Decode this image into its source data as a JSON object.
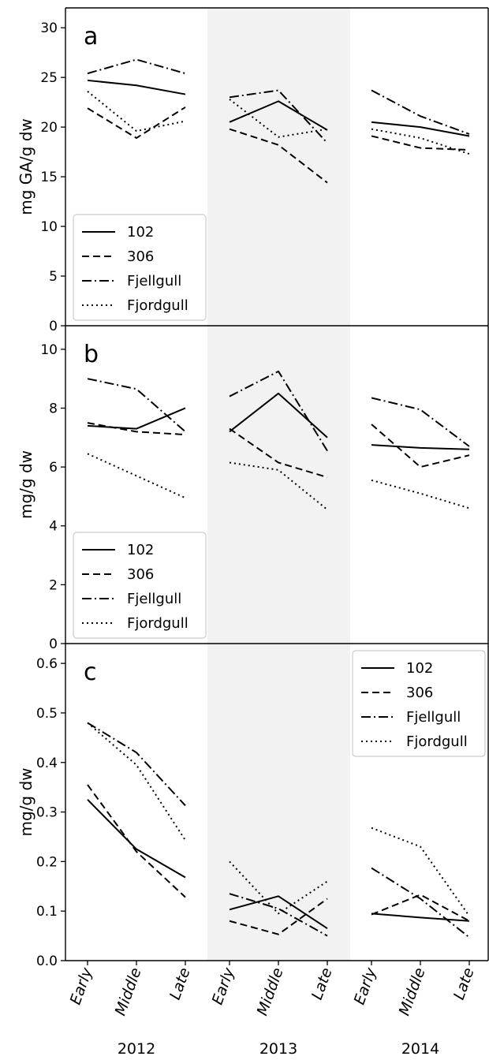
{
  "chart_data": {
    "type": "line",
    "categories": [
      "Early",
      "Middle",
      "Late"
    ],
    "years": [
      "2012",
      "2013",
      "2014"
    ],
    "series_names": [
      "102",
      "306",
      "Fjellgull",
      "Fjordgull"
    ],
    "panels": [
      {
        "letter": "a",
        "ylabel": "mg GA/g dw",
        "ylim": [
          0,
          32
        ],
        "yticks": [
          0,
          5,
          10,
          15,
          20,
          25,
          30
        ],
        "legend_position": "lower-left",
        "series": [
          {
            "name": "102",
            "values": {
              "2012": [
                24.7,
                24.2,
                23.3
              ],
              "2013": [
                20.5,
                22.6,
                19.7
              ],
              "2014": [
                20.5,
                20.0,
                19.1
              ]
            }
          },
          {
            "name": "306",
            "values": {
              "2012": [
                21.9,
                18.9,
                22.0
              ],
              "2013": [
                19.8,
                18.2,
                14.4
              ],
              "2014": [
                19.1,
                17.9,
                17.7
              ]
            }
          },
          {
            "name": "Fjellgull",
            "values": {
              "2012": [
                25.4,
                26.8,
                25.4
              ],
              "2013": [
                23.0,
                23.7,
                18.4
              ],
              "2014": [
                23.7,
                21.1,
                19.3
              ]
            }
          },
          {
            "name": "Fjordgull",
            "values": {
              "2012": [
                23.6,
                19.6,
                20.6
              ],
              "2013": [
                22.8,
                19.0,
                19.8
              ],
              "2014": [
                19.8,
                18.9,
                17.3
              ]
            }
          }
        ]
      },
      {
        "letter": "b",
        "ylabel": "mg/g dw",
        "ylim": [
          0,
          10.8
        ],
        "yticks": [
          0,
          2,
          4,
          6,
          8,
          10
        ],
        "legend_position": "lower-left",
        "series": [
          {
            "name": "102",
            "values": {
              "2012": [
                7.4,
                7.3,
                8.0
              ],
              "2013": [
                7.2,
                8.5,
                7.0
              ],
              "2014": [
                6.75,
                6.65,
                6.6
              ]
            }
          },
          {
            "name": "306",
            "values": {
              "2012": [
                7.5,
                7.2,
                7.1
              ],
              "2013": [
                7.3,
                6.15,
                5.65
              ],
              "2014": [
                7.45,
                6.0,
                6.4
              ]
            }
          },
          {
            "name": "Fjellgull",
            "values": {
              "2012": [
                9.0,
                8.65,
                7.2
              ],
              "2013": [
                8.4,
                9.25,
                6.55
              ],
              "2014": [
                8.35,
                7.95,
                6.7
              ]
            }
          },
          {
            "name": "Fjordgull",
            "values": {
              "2012": [
                6.45,
                5.7,
                4.95
              ],
              "2013": [
                6.15,
                5.9,
                4.55
              ],
              "2014": [
                5.55,
                5.1,
                4.6
              ]
            }
          }
        ]
      },
      {
        "letter": "c",
        "ylabel": "mg/g dw",
        "ylim": [
          0,
          0.64
        ],
        "yticks": [
          "0.0",
          "0.1",
          "0.2",
          "0.3",
          "0.4",
          "0.5",
          "0.6"
        ],
        "legend_position": "upper-right",
        "series": [
          {
            "name": "102",
            "values": {
              "2012": [
                0.325,
                0.225,
                0.168
              ],
              "2013": [
                0.103,
                0.13,
                0.065
              ],
              "2014": [
                0.095,
                0.087,
                0.08
              ]
            }
          },
          {
            "name": "306",
            "values": {
              "2012": [
                0.355,
                0.22,
                0.128
              ],
              "2013": [
                0.08,
                0.053,
                0.125
              ],
              "2014": [
                0.093,
                0.133,
                0.08
              ]
            }
          },
          {
            "name": "Fjellgull",
            "values": {
              "2012": [
                0.48,
                0.42,
                0.313
              ],
              "2013": [
                0.135,
                0.105,
                0.05
              ],
              "2014": [
                0.187,
                0.125,
                0.047
              ]
            }
          },
          {
            "name": "Fjordgull",
            "values": {
              "2012": [
                0.48,
                0.395,
                0.243
              ],
              "2013": [
                0.2,
                0.095,
                0.16
              ],
              "2014": [
                0.268,
                0.23,
                0.09
              ]
            }
          }
        ]
      }
    ]
  },
  "colors": {
    "line": "#000000",
    "shaded_band": "#f2f2f2",
    "background": "#ffffff"
  },
  "styles": {
    "102": "solid",
    "306": "dashed",
    "Fjellgull": "dash-dot",
    "Fjordgull": "dotted"
  }
}
